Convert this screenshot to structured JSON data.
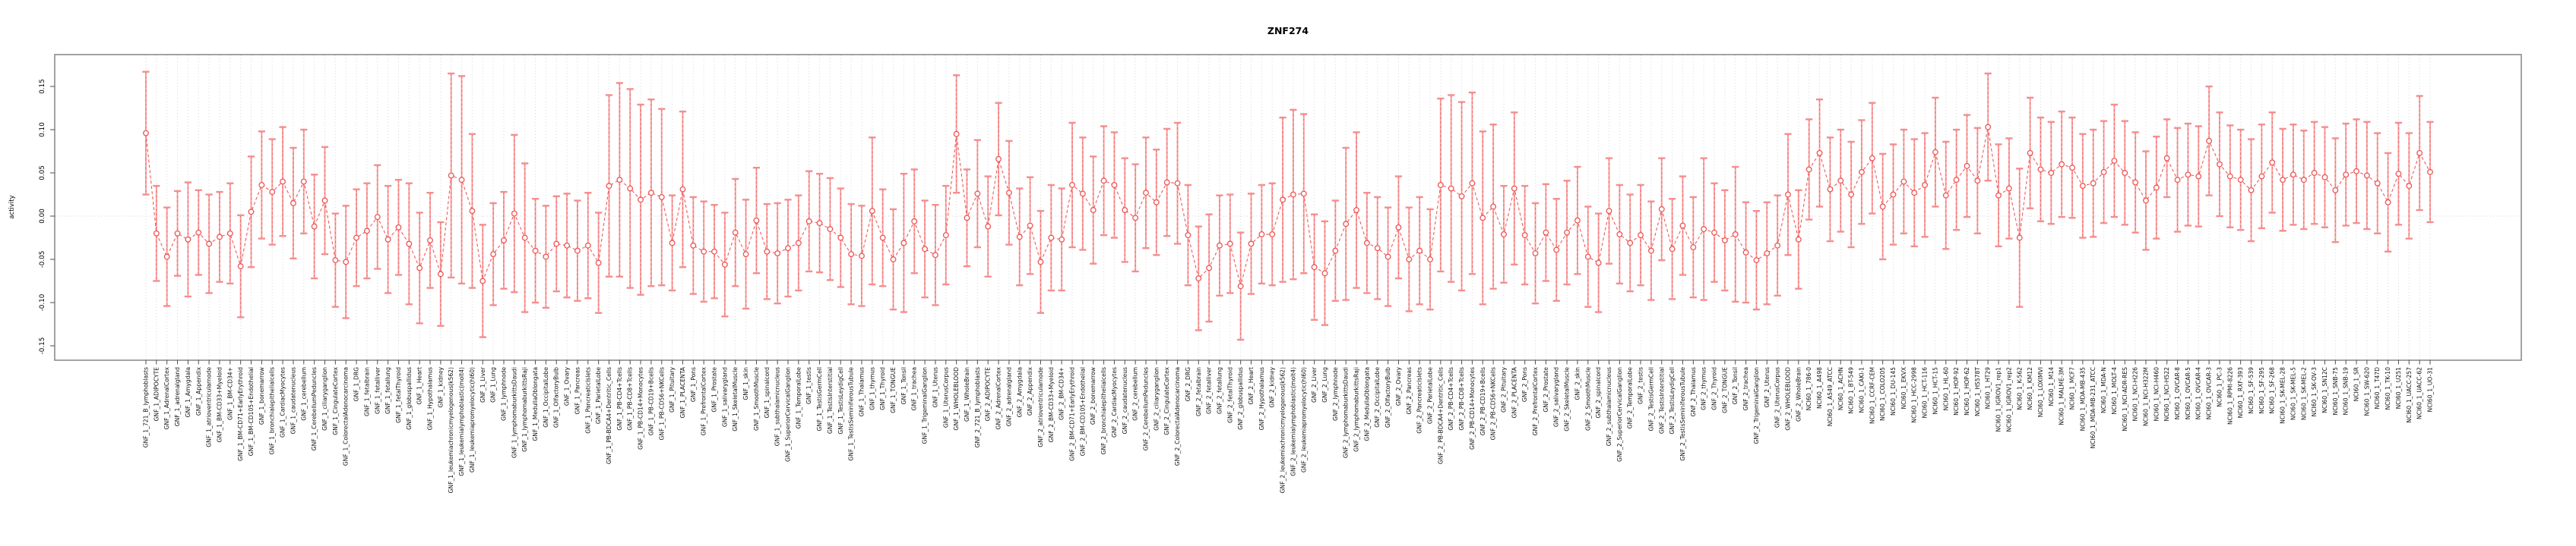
{
  "title": "ZNF274",
  "colors": {
    "background": "#ffffff",
    "plot_border": "#8c8c8c",
    "grid": "#d9d9d9",
    "zero_line": "#cfcfcf",
    "error_bar": "#f9a1a1",
    "error_bar_dash": "#ef6a6a",
    "error_cap": "#f58d8d",
    "marker": "#ef5555",
    "connector": "#f05a5a",
    "tick": "#4d4d4d",
    "label_text": "#111111",
    "title_text": "#000000"
  },
  "chart_data": {
    "type": "line",
    "subtype": "errorbar-series",
    "title": "ZNF274",
    "xlabel": "",
    "ylabel": "activity",
    "ylim": [
      -0.166,
      0.175
    ],
    "yticks": [
      0.15,
      0.1,
      0.05,
      0.0,
      -0.05,
      -0.1,
      -0.15
    ],
    "ytick_labels": [
      "0.15",
      "0.10",
      "0.05",
      "0.00",
      "-0.05",
      "-0.10",
      "-0.15"
    ],
    "grid": "vertical dotted gridline per category; horizontal dotted line at 0 only",
    "legend": "none",
    "marker": "open-circle",
    "line_style": "dashed connector with error bars and caps",
    "categories": [
      "GNF_1_721_B_lymphoblasts",
      "GNF_1_ADIPOCYTE",
      "GNF_1_AdrenalCortex",
      "GNF_1_adrenalgland",
      "GNF_1_Amygdala",
      "GNF_1_Appendix",
      "GNF_1_atrioventricularnode",
      "GNF_1_BM-CD33+Myeloid",
      "GNF_1_BM-CD34+",
      "GNF_1_BM-CD71+EarlyErythroid",
      "GNF_1_BM-CD105+Endothelial",
      "GNF_1_bonemarrow",
      "GNF_1_bronchialepithelialcells",
      "GNF_1_CardiacMyocytes",
      "GNF_1_caudatenucleus",
      "GNF_1_cerebellum",
      "GNF_1_CerebellumPeduncles",
      "GNF_1_ciliaryganglion",
      "GNF_1_CingulateCortex",
      "GNF_1_ColorectalAdenocarcinoma",
      "GNF_1_DRG",
      "GNF_1_fetalbrain",
      "GNF_1_fetalliver",
      "GNF_1_fetallung",
      "GNF_1_fetalThyroid",
      "GNF_1_globuspallidus",
      "GNF_1_Heart",
      "GNF_1_Hypothalamus",
      "GNF_1_kidney",
      "GNF_1_leukemiachronicmyelogenous(k562)",
      "GNF_1_leukemialymphoblastic(molt4)",
      "GNF_1_leukemiapromyelocytic(hl60)",
      "GNF_1_Liver",
      "GNF_1_Lung",
      "GNF_1_lymphnode",
      "GNF_1_lymphomaburkittsDaudi",
      "GNF_1_lymphomaburkittsRaji",
      "GNF_1_MedullaOblongata",
      "GNF_1_OccipitalLobe",
      "GNF_1_OlfactoryBulb",
      "GNF_1_Ovary",
      "GNF_1_Pancreas",
      "GNF_1_PancreaticIslets",
      "GNF_1_ParietalLobe",
      "GNF_1_PB-BDCA4+Dentritic_Cells",
      "GNF_1_PB-CD4+Tcells",
      "GNF_1_PB-CD8+Tcells",
      "GNF_1_PB-CD14+Monocytes",
      "GNF_1_PB-CD19+Bcells",
      "GNF_1_PB-CD56+NKCells",
      "GNF_1_Pituitary",
      "GNF_1_PLACENTA",
      "GNF_1_Pons",
      "GNF_1_PrefrontalCortex",
      "GNF_1_Prostate",
      "GNF_1_salivarygland",
      "GNF_1_SkeletalMuscle",
      "GNF_1_skin",
      "GNF_1_SmoothMuscle",
      "GNF_1_spinalcord",
      "GNF_1_subthalamicnucleus",
      "GNF_1_SuperiorCervicalGanglion",
      "GNF_1_TemporalLobe",
      "GNF_1_testis",
      "GNF_1_TestisGermCell",
      "GNF_1_TestisInterstitial",
      "GNF_1_TestisLeydigCell",
      "GNF_1_TestisSeminiferousTubule",
      "GNF_1_Thalamus",
      "GNF_1_thymus",
      "GNF_1_Thyroid",
      "GNF_1_TONGUE",
      "GNF_1_Tonsil",
      "GNF_1_trachea",
      "GNF_1_TrigeminalGanglion",
      "GNF_1_Uterus",
      "GNF_1_UterusCorpus",
      "GNF_1_WHOLEBLOOD",
      "GNF_1_WholeBrain",
      "GNF_2_721_B_lymphoblasts",
      "GNF_2_ADIPOCYTE",
      "GNF_2_AdrenalCortex",
      "GNF_2_adrenalgland",
      "GNF_2_Amygdala",
      "GNF_2_Appendix",
      "GNF_2_atrioventricularnode",
      "GNF_2_BM-CD33+Myeloid",
      "GNF_2_BM-CD34+",
      "GNF_2_BM-CD71+EarlyErythroid",
      "GNF_2_BM-CD105+Endothelial",
      "GNF_2_bonemarrow",
      "GNF_2_bronchialepithelialcells",
      "GNF_2_CardiacMyocytes",
      "GNF_2_caudatenucleus",
      "GNF_2_cerebellum",
      "GNF_2_CerebellumPeduncles",
      "GNF_2_ciliaryganglion",
      "GNF_2_CingulateCortex",
      "GNF_2_ColorectalAdenocarcinoma",
      "GNF_2_DRG",
      "GNF_2_fetalbrain",
      "GNF_2_fetalliver",
      "GNF_2_fetallung",
      "GNF_2_fetalThyroid",
      "GNF_2_globuspallidus",
      "GNF_2_Heart",
      "GNF_2_Hypothalamus",
      "GNF_2_kidney",
      "GNF_2_leukemiachronicmyelogenous(k562)",
      "GNF_2_leukemialymphoblastic(molt4)",
      "GNF_2_leukemiapromyelocytic(hl60)",
      "GNF_2_Liver",
      "GNF_2_Lung",
      "GNF_2_lymphnode",
      "GNF_2_lymphomaburkittsDaudi",
      "GNF_2_lymphomaburkittsRaji",
      "GNF_2_MedullaOblongata",
      "GNF_2_OccipitalLobe",
      "GNF_2_OlfactoryBulb",
      "GNF_2_Ovary",
      "GNF_2_Pancreas",
      "GNF_2_PancreaticIslets",
      "GNF_2_ParietalLobe",
      "GNF_2_PB-BDCA4+Dentritic_Cells",
      "GNF_2_PB-CD4+Tcells",
      "GNF_2_PB-CD8+Tcells",
      "GNF_2_PB-CD14+Monocytes",
      "GNF_2_PB-CD19+Bcells",
      "GNF_2_PB-CD56+NKCells",
      "GNF_2_Pituitary",
      "GNF_2_PLACENTA",
      "GNF_2_Pons",
      "GNF_2_PrefrontalCortex",
      "GNF_2_Prostate",
      "GNF_2_salivarygland",
      "GNF_2_SkeletalMuscle",
      "GNF_2_skin",
      "GNF_2_SmoothMuscle",
      "GNF_2_spinalcord",
      "GNF_2_subthalamicnucleus",
      "GNF_2_SuperiorCervicalGanglion",
      "GNF_2_TemporalLobe",
      "GNF_2_testis",
      "GNF_2_TestisGermCell",
      "GNF_2_TestisInterstitial",
      "GNF_2_TestisLeydigCell",
      "GNF_2_TestisSeminiferousTubule",
      "GNF_2_Thalamus",
      "GNF_2_thymus",
      "GNF_2_Thyroid",
      "GNF_2_TONGUE",
      "GNF_2_Tonsil",
      "GNF_2_trachea",
      "GNF_2_TrigeminalGanglion",
      "GNF_2_Uterus",
      "GNF_2_UterusCorpus",
      "GNF_2_WHOLEBLOOD",
      "GNF_2_WholeBrain",
      "NCI60_1_786-0",
      "NCI60_1_A498",
      "NCI60_1_A549_ATCC",
      "NCI60_1_ACHN",
      "NCI60_1_BT-549",
      "NCI60_1_CAKI-1",
      "NCI60_1_CCRF-CEM",
      "NCI60_1_COLO205",
      "NCI60_1_DU-145",
      "NCI60_1_EKVX",
      "NCI60_1_HCC-2998",
      "NCI60_1_HCT-116",
      "NCI60_1_HCT-15",
      "NCI60_1_HL-60",
      "NCI60_1_HOP-92",
      "NCI60_1_HOP-62",
      "NCI60_1_HS578T",
      "NCI60_1_HT29",
      "NCI60_1_IGROV1_rep1",
      "NCI60_1_IGROV1_rep2",
      "NCI60_1_K-562",
      "NCI60_1_KM12",
      "NCI60_1_LOXIMVI",
      "NCI60_1_M14",
      "NCI60_1_MALME-3M",
      "NCI60_1_MCF7",
      "NCI60_1_MDA-MB-435",
      "NCI60_1_MDA-MB-231_ATCC",
      "NCI60_1_MDA-N",
      "NCI60_1_MOLT-4",
      "NCI60_1_NCI-ADR-RES",
      "NCI60_1_NCI-H226",
      "NCI60_1_NCI-H322M",
      "NCI60_1_NCI-H460",
      "NCI60_1_NCI-H522",
      "NCI60_1_OVCAR-8",
      "NCI60_1_OVCAR-5",
      "NCI60_1_OVCAR-4",
      "NCI60_1_OVCAR-3",
      "NCI60_1_PC-3",
      "NCI60_1_RPMI-8226",
      "NCI60_1_RXF-393",
      "NCI60_1_SF-539",
      "NCI60_1_SF-295",
      "NCI60_1_SF-268",
      "NCI60_1_SK-MEL-28",
      "NCI60_1_SK-MEL-5",
      "NCI60_1_SK-MEL-2",
      "NCI60_1_SK-OV-3",
      "NCI60_1_SN12C",
      "NCI60_1_SNB-75",
      "NCI60_1_SNB-19",
      "NCI60_1_SR",
      "NCI60_1_SW-620",
      "NCI60_1_T47D",
      "NCI60_1_TK-10",
      "NCI60_1_U251",
      "NCI60_1_UACC-257",
      "NCI60_1_UACC-62",
      "NCI60_1_UO-31"
    ],
    "series": [
      {
        "name": "activity",
        "values": [
          0.096,
          -0.02,
          -0.047,
          -0.02,
          -0.027,
          -0.019,
          -0.032,
          -0.024,
          -0.02,
          -0.058,
          0.005,
          0.036,
          0.028,
          0.04,
          0.015,
          0.04,
          -0.012,
          0.018,
          -0.051,
          -0.053,
          -0.025,
          -0.017,
          -0.001,
          -0.027,
          -0.013,
          -0.032,
          -0.06,
          -0.028,
          -0.067,
          0.047,
          0.042,
          0.006,
          -0.075,
          -0.044,
          -0.028,
          0.003,
          -0.025,
          -0.04,
          -0.047,
          -0.032,
          -0.034,
          -0.04,
          -0.034,
          -0.054,
          0.035,
          0.042,
          0.032,
          0.019,
          0.027,
          0.022,
          -0.031,
          0.031,
          -0.034,
          -0.041,
          -0.041,
          -0.056,
          -0.019,
          -0.044,
          -0.005,
          -0.041,
          -0.043,
          -0.037,
          -0.031,
          -0.006,
          -0.008,
          -0.015,
          -0.025,
          -0.044,
          -0.046,
          0.006,
          -0.025,
          -0.05,
          -0.031,
          -0.006,
          -0.038,
          -0.045,
          -0.022,
          0.095,
          -0.002,
          0.026,
          -0.012,
          0.066,
          0.027,
          -0.024,
          -0.011,
          -0.053,
          -0.025,
          -0.027,
          0.036,
          0.026,
          0.007,
          0.041,
          0.036,
          0.007,
          -0.002,
          0.027,
          0.016,
          0.039,
          0.038,
          -0.022,
          -0.072,
          -0.06,
          -0.034,
          -0.032,
          -0.081,
          -0.032,
          -0.021,
          -0.021,
          0.019,
          0.025,
          0.026,
          -0.059,
          -0.066,
          -0.04,
          -0.009,
          0.007,
          -0.031,
          -0.037,
          -0.047,
          -0.013,
          -0.05,
          -0.04,
          -0.05,
          0.036,
          0.032,
          0.023,
          0.038,
          -0.002,
          0.011,
          -0.021,
          0.032,
          -0.022,
          -0.043,
          -0.019,
          -0.039,
          -0.019,
          -0.005,
          -0.047,
          -0.054,
          0.006,
          -0.021,
          -0.031,
          -0.022,
          -0.04,
          0.008,
          -0.038,
          -0.011,
          -0.036,
          -0.015,
          -0.019,
          -0.028,
          -0.021,
          -0.042,
          -0.051,
          -0.043,
          -0.034,
          0.025,
          -0.027,
          0.054,
          0.073,
          0.031,
          0.041,
          0.025,
          0.051,
          0.067,
          0.011,
          0.025,
          0.04,
          0.027,
          0.036,
          0.074,
          0.024,
          0.042,
          0.058,
          0.041,
          0.103,
          0.024,
          0.032,
          -0.025,
          0.073,
          0.054,
          0.05,
          0.06,
          0.056,
          0.035,
          0.038,
          0.051,
          0.064,
          0.05,
          0.039,
          0.018,
          0.033,
          0.067,
          0.042,
          0.048,
          0.046,
          0.087,
          0.06,
          0.046,
          0.042,
          0.03,
          0.046,
          0.062,
          0.042,
          0.048,
          0.042,
          0.05,
          0.045,
          0.03,
          0.048,
          0.052,
          0.047,
          0.038,
          0.016,
          0.049,
          0.035,
          0.073,
          0.051
        ],
        "errors": [
          0.071,
          0.055,
          0.057,
          0.049,
          0.066,
          0.049,
          0.057,
          0.052,
          0.058,
          0.059,
          0.064,
          0.062,
          0.061,
          0.063,
          0.064,
          0.06,
          0.06,
          0.062,
          0.054,
          0.065,
          0.056,
          0.055,
          0.06,
          0.062,
          0.055,
          0.07,
          0.064,
          0.055,
          0.06,
          0.118,
          0.12,
          0.089,
          0.065,
          0.059,
          0.056,
          0.091,
          0.086,
          0.06,
          0.059,
          0.055,
          0.06,
          0.058,
          0.061,
          0.058,
          0.105,
          0.112,
          0.115,
          0.11,
          0.108,
          0.102,
          0.055,
          0.09,
          0.056,
          0.058,
          0.054,
          0.06,
          0.062,
          0.063,
          0.061,
          0.055,
          0.058,
          0.056,
          0.055,
          0.058,
          0.057,
          0.059,
          0.057,
          0.058,
          0.058,
          0.085,
          0.056,
          0.058,
          0.08,
          0.06,
          0.056,
          0.058,
          0.057,
          0.068,
          0.056,
          0.062,
          0.058,
          0.065,
          0.06,
          0.056,
          0.056,
          0.059,
          0.061,
          0.059,
          0.072,
          0.065,
          0.062,
          0.063,
          0.061,
          0.06,
          0.062,
          0.064,
          0.061,
          0.062,
          0.07,
          0.058,
          0.06,
          0.062,
          0.058,
          0.057,
          0.062,
          0.058,
          0.057,
          0.059,
          0.095,
          0.098,
          0.092,
          0.061,
          0.06,
          0.058,
          0.088,
          0.09,
          0.058,
          0.059,
          0.057,
          0.059,
          0.06,
          0.062,
          0.058,
          0.1,
          0.108,
          0.109,
          0.105,
          0.1,
          0.095,
          0.056,
          0.088,
          0.057,
          0.058,
          0.056,
          0.059,
          0.06,
          0.062,
          0.058,
          0.057,
          0.061,
          0.057,
          0.056,
          0.058,
          0.057,
          0.059,
          0.058,
          0.057,
          0.058,
          0.082,
          0.057,
          0.058,
          0.078,
          0.058,
          0.057,
          0.059,
          0.058,
          0.07,
          0.057,
          0.058,
          0.062,
          0.06,
          0.059,
          0.061,
          0.06,
          0.064,
          0.061,
          0.058,
          0.06,
          0.062,
          0.06,
          0.063,
          0.062,
          0.058,
          0.059,
          0.061,
          0.062,
          0.059,
          0.058,
          0.08,
          0.064,
          0.06,
          0.059,
          0.061,
          0.058,
          0.06,
          0.062,
          0.059,
          0.065,
          0.06,
          0.058,
          0.057,
          0.059,
          0.045,
          0.06,
          0.059,
          0.058,
          0.063,
          0.06,
          0.059,
          0.058,
          0.059,
          0.06,
          0.058,
          0.059,
          0.058,
          0.057,
          0.059,
          0.058,
          0.06,
          0.059,
          0.06,
          0.062,
          0.058,
          0.057,
          0.059,
          0.061,
          0.066,
          0.058
        ]
      }
    ]
  }
}
